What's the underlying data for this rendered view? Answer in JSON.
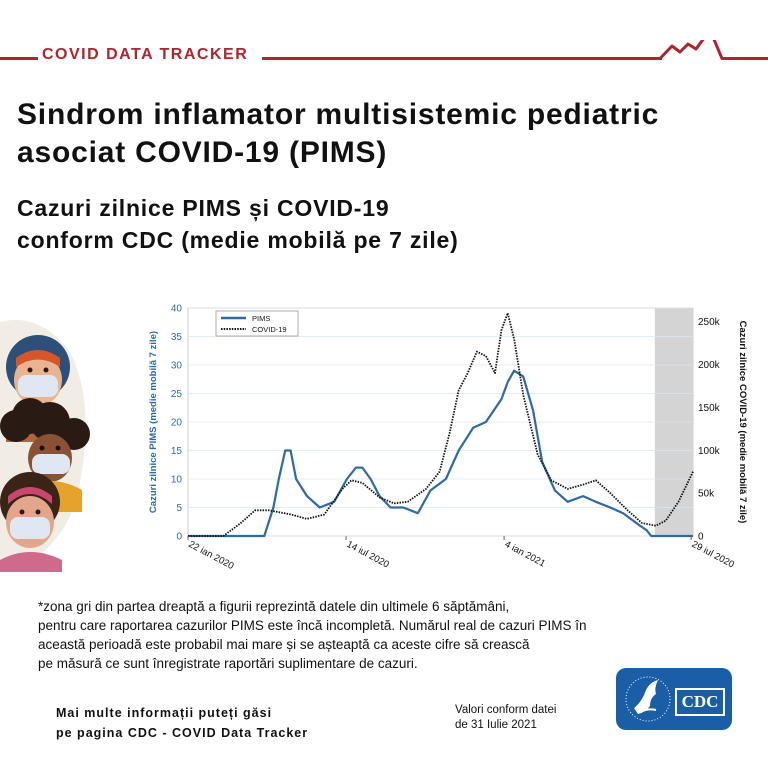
{
  "banner": {
    "label": "COVID DATA TRACKER"
  },
  "header": {
    "title_line1": "Sindrom inflamator multisistemic pediatric",
    "title_line2": "asociat COVID-19 (PIMS)",
    "subtitle_line1": "Cazuri zilnice PIMS și COVID-19",
    "subtitle_line2": "conform CDC (medie mobilă pe 7 zile)"
  },
  "colors": {
    "brand_red": "#b0242b",
    "pims_blue": "#2e6aa6",
    "covid_black": "#111111",
    "cdc_blue": "#1a5ea8",
    "shaded_zone": "#d4d4d4"
  },
  "chart_data": {
    "type": "line",
    "x_ticks": [
      "22 ian 2020",
      "14 iul 2020",
      "4 ian 2021",
      "29 iul 2020"
    ],
    "y_left": {
      "label": "Cazuri zilnice PIMS (medie mobilă 7 zile)",
      "ticks": [
        "0",
        "5",
        "10",
        "15",
        "20",
        "25",
        "30",
        "35",
        "40"
      ],
      "lim": [
        0,
        40
      ]
    },
    "y_right": {
      "label": "Cazuri zilnice COVID-19 (medie mobilă 7 zile)",
      "ticks": [
        "0",
        "50k",
        "100k",
        "150k",
        "200k",
        "250k"
      ],
      "lim": [
        0,
        266000
      ]
    },
    "legend": [
      "PIMS",
      "COVID-19"
    ],
    "legend_position": "top-left",
    "shaded_period": "last 6 weeks",
    "series": [
      {
        "name": "PIMS",
        "axis": "left",
        "x": [
          "2020-01-22",
          "2020-04-15",
          "2020-04-25",
          "2020-05-01",
          "2020-05-08",
          "2020-05-14",
          "2020-05-20",
          "2020-06-01",
          "2020-06-15",
          "2020-07-01",
          "2020-07-15",
          "2020-07-25",
          "2020-08-01",
          "2020-08-10",
          "2020-08-20",
          "2020-09-01",
          "2020-09-15",
          "2020-10-01",
          "2020-10-15",
          "2020-11-01",
          "2020-11-15",
          "2020-12-01",
          "2020-12-15",
          "2021-01-01",
          "2021-01-08",
          "2021-01-15",
          "2021-01-25",
          "2021-02-05",
          "2021-02-15",
          "2021-03-01",
          "2021-03-15",
          "2021-04-01",
          "2021-04-15",
          "2021-05-01",
          "2021-05-15",
          "2021-06-01",
          "2021-06-10",
          "2021-06-15",
          "2021-07-31"
        ],
        "values": [
          0,
          0,
          5,
          10,
          15,
          15,
          10,
          7,
          5,
          6,
          10,
          12,
          12,
          10,
          7,
          5,
          5,
          4,
          8,
          10,
          15,
          19,
          20,
          24,
          27,
          29,
          28,
          22,
          13,
          8,
          6,
          7,
          6,
          5,
          4,
          2,
          1,
          0,
          0
        ]
      },
      {
        "name": "COVID-19",
        "axis": "right",
        "x": [
          "2020-01-22",
          "2020-03-01",
          "2020-03-20",
          "2020-04-05",
          "2020-04-20",
          "2020-05-15",
          "2020-06-01",
          "2020-06-20",
          "2020-07-10",
          "2020-07-20",
          "2020-08-01",
          "2020-08-20",
          "2020-09-05",
          "2020-09-20",
          "2020-10-10",
          "2020-10-25",
          "2020-11-05",
          "2020-11-15",
          "2020-11-25",
          "2020-12-05",
          "2020-12-15",
          "2020-12-25",
          "2021-01-01",
          "2021-01-08",
          "2021-01-15",
          "2021-01-25",
          "2021-02-10",
          "2021-02-25",
          "2021-03-15",
          "2021-04-01",
          "2021-04-15",
          "2021-05-01",
          "2021-05-20",
          "2021-06-05",
          "2021-06-20",
          "2021-07-01",
          "2021-07-15",
          "2021-07-31"
        ],
        "values": [
          0,
          0,
          15000,
          30000,
          30000,
          25000,
          20000,
          25000,
          55000,
          65000,
          62000,
          45000,
          38000,
          40000,
          55000,
          75000,
          120000,
          170000,
          190000,
          215000,
          210000,
          190000,
          240000,
          260000,
          230000,
          165000,
          95000,
          65000,
          55000,
          60000,
          65000,
          50000,
          30000,
          15000,
          12000,
          18000,
          40000,
          75000
        ]
      }
    ]
  },
  "footnote": {
    "line1": "*zona gri din partea dreaptă a figurii reprezintă datele din ultimele 6 săptămâni,",
    "line2": "pentru care raportarea cazurilor PIMS este încă incompletă. Numărul real de cazuri PIMS în",
    "line3": "această perioadă este probabil mai mare și se așteaptă ca aceste cifre să crească",
    "line4": "pe măsură ce sunt înregistrate raportări suplimentare de cazuri."
  },
  "footer": {
    "more_line1": "Mai multe informații puteți găsi",
    "more_line2": "pe pagina CDC - COVID Data Tracker",
    "date_line1": "Valori conform datei",
    "date_line2": "de 31 Iulie 2021",
    "logo_text": "CDC"
  }
}
